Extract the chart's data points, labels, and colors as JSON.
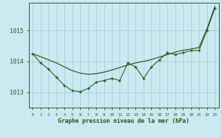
{
  "title": "Graphe pression niveau de la mer (hPa)",
  "background_color": "#cce8f0",
  "grid_color": "#99ccd9",
  "line_color": "#1a5c1a",
  "x_labels": [
    "0",
    "1",
    "2",
    "3",
    "4",
    "5",
    "6",
    "7",
    "8",
    "9",
    "10",
    "11",
    "12",
    "13",
    "14",
    "15",
    "16",
    "17",
    "18",
    "19",
    "20",
    "21",
    "22",
    "23"
  ],
  "ylim": [
    1012.5,
    1015.9
  ],
  "yticks": [
    1013,
    1014,
    1015
  ],
  "smooth_x": [
    0,
    1,
    2,
    3,
    4,
    5,
    6,
    7,
    8,
    9,
    10,
    11,
    12,
    13,
    14,
    15,
    16,
    17,
    18,
    19,
    20,
    21,
    22,
    23
  ],
  "smooth_y": [
    1014.25,
    1014.15,
    1014.05,
    1013.95,
    1013.82,
    1013.7,
    1013.62,
    1013.58,
    1013.6,
    1013.65,
    1013.72,
    1013.8,
    1013.88,
    1013.95,
    1014.0,
    1014.06,
    1014.14,
    1014.22,
    1014.3,
    1014.36,
    1014.4,
    1014.45,
    1015.05,
    1015.78
  ],
  "jagged_x": [
    0,
    1,
    2,
    3,
    4,
    5,
    6,
    7,
    8,
    9,
    10,
    11,
    12,
    13,
    14,
    15,
    16,
    17,
    18,
    19,
    20,
    21,
    22,
    23
  ],
  "jagged_y": [
    1014.25,
    1013.95,
    1013.75,
    1013.48,
    1013.22,
    1013.05,
    1013.02,
    1013.12,
    1013.32,
    1013.38,
    1013.45,
    1013.38,
    1013.95,
    1013.82,
    1013.45,
    1013.82,
    1014.05,
    1014.28,
    1014.22,
    1014.28,
    1014.35,
    1014.35,
    1015.0,
    1015.72
  ]
}
